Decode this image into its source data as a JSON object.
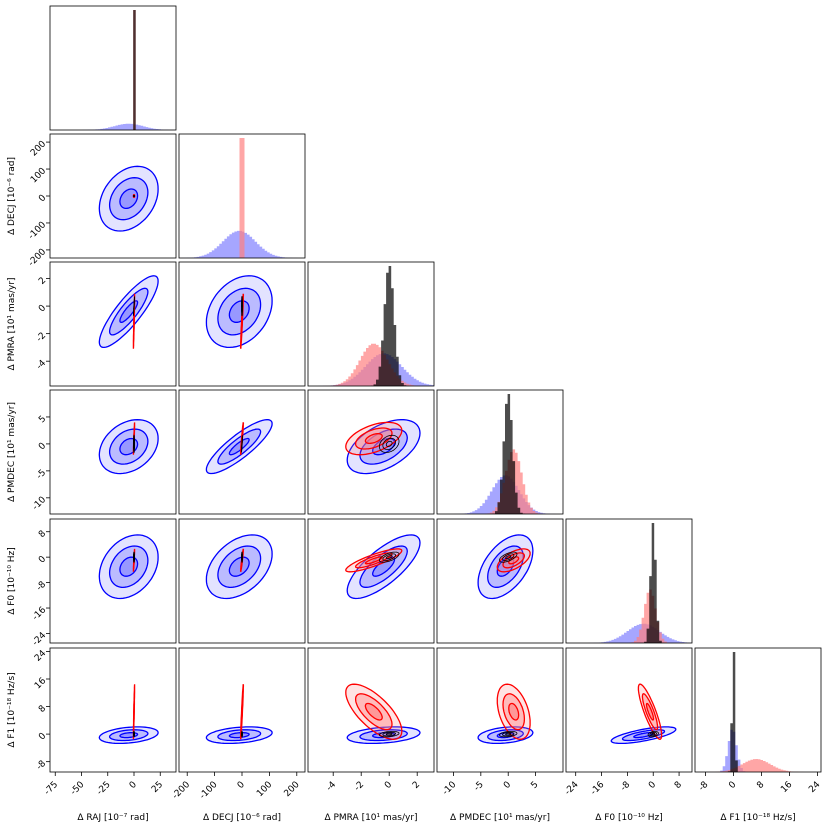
{
  "chart_data": {
    "type": "corner",
    "parameters": [
      {
        "key": "RAJ",
        "label": "Δ RAJ [10⁻⁷ rad]",
        "range": [
          -80,
          40
        ],
        "ticks": [
          -75,
          -50,
          -25,
          0,
          25
        ]
      },
      {
        "key": "DECJ",
        "label": "Δ DECJ [10⁻⁶ rad]",
        "range": [
          -230,
          230
        ],
        "ticks": [
          -200,
          -100,
          0,
          100,
          200
        ]
      },
      {
        "key": "PMRA",
        "label": "Δ PMRA [10¹ mas/yr]",
        "range": [
          -5.8,
          3.2
        ],
        "ticks": [
          -4,
          -2,
          0,
          2
        ]
      },
      {
        "key": "PMDEC",
        "label": "Δ PMDEC [10¹ mas/yr]",
        "range": [
          -13,
          10
        ],
        "ticks": [
          -10,
          -5,
          0,
          5
        ]
      },
      {
        "key": "F0",
        "label": "Δ F0 [10⁻¹⁰ Hz]",
        "range": [
          -27,
          12
        ],
        "ticks": [
          -24,
          -16,
          -8,
          0,
          8
        ]
      },
      {
        "key": "F1",
        "label": "Δ F1 [10⁻¹⁸ Hz/s]",
        "range": [
          -11,
          25
        ],
        "ticks": [
          -8,
          0,
          8,
          16,
          24
        ]
      }
    ],
    "series": [
      {
        "name": "blue",
        "color": "#0000ff",
        "fill": "#8080ff",
        "means": [
          -5,
          -10,
          -0.4,
          -0.5,
          -3,
          -0.3
        ],
        "sigmas": [
          14,
          60,
          1.3,
          2.5,
          5.0,
          1.2
        ],
        "correlations": {
          "1-0": 0.3,
          "2-0": 0.85,
          "2-1": 0.3,
          "3-0": 0.3,
          "3-1": 0.85,
          "3-2": 0.5,
          "4-0": 0.3,
          "4-1": 0.4,
          "4-2": 0.75,
          "4-3": 0.5,
          "5-0": 0.3,
          "5-1": 0.3,
          "5-2": 0.3,
          "5-3": 0.3,
          "5-4": 0.7
        }
      },
      {
        "name": "red",
        "color": "#ff0000",
        "fill": "#ff8080",
        "means": [
          0,
          0,
          -1.1,
          1.0,
          -1,
          6.5
        ],
        "sigmas": [
          0.3,
          2.5,
          1.0,
          1.5,
          1.8,
          4.0
        ],
        "correlations": {
          "1-0": 0.0,
          "2-0": 0.95,
          "2-1": 0.95,
          "3-0": 0.95,
          "3-1": 0.95,
          "3-2": 0.5,
          "4-0": 0.95,
          "4-1": 0.95,
          "4-2": 0.85,
          "4-3": 0.6,
          "5-0": 0.95,
          "5-1": 0.95,
          "5-2": -0.7,
          "5-3": -0.4,
          "5-4": -0.85
        }
      },
      {
        "name": "black",
        "color": "#000000",
        "fill": "#000000",
        "means": [
          0,
          0,
          0,
          0,
          0,
          0
        ],
        "sigmas": [
          0.3,
          1.0,
          0.35,
          0.8,
          0.8,
          0.4
        ],
        "correlations": {
          "2-0": 0.95,
          "3-1": 0.95,
          "3-2": 0.3,
          "4-2": 0.6,
          "4-3": 0.6,
          "5-2": 0.3,
          "5-3": 0.3,
          "5-4": 0.3
        }
      }
    ]
  }
}
